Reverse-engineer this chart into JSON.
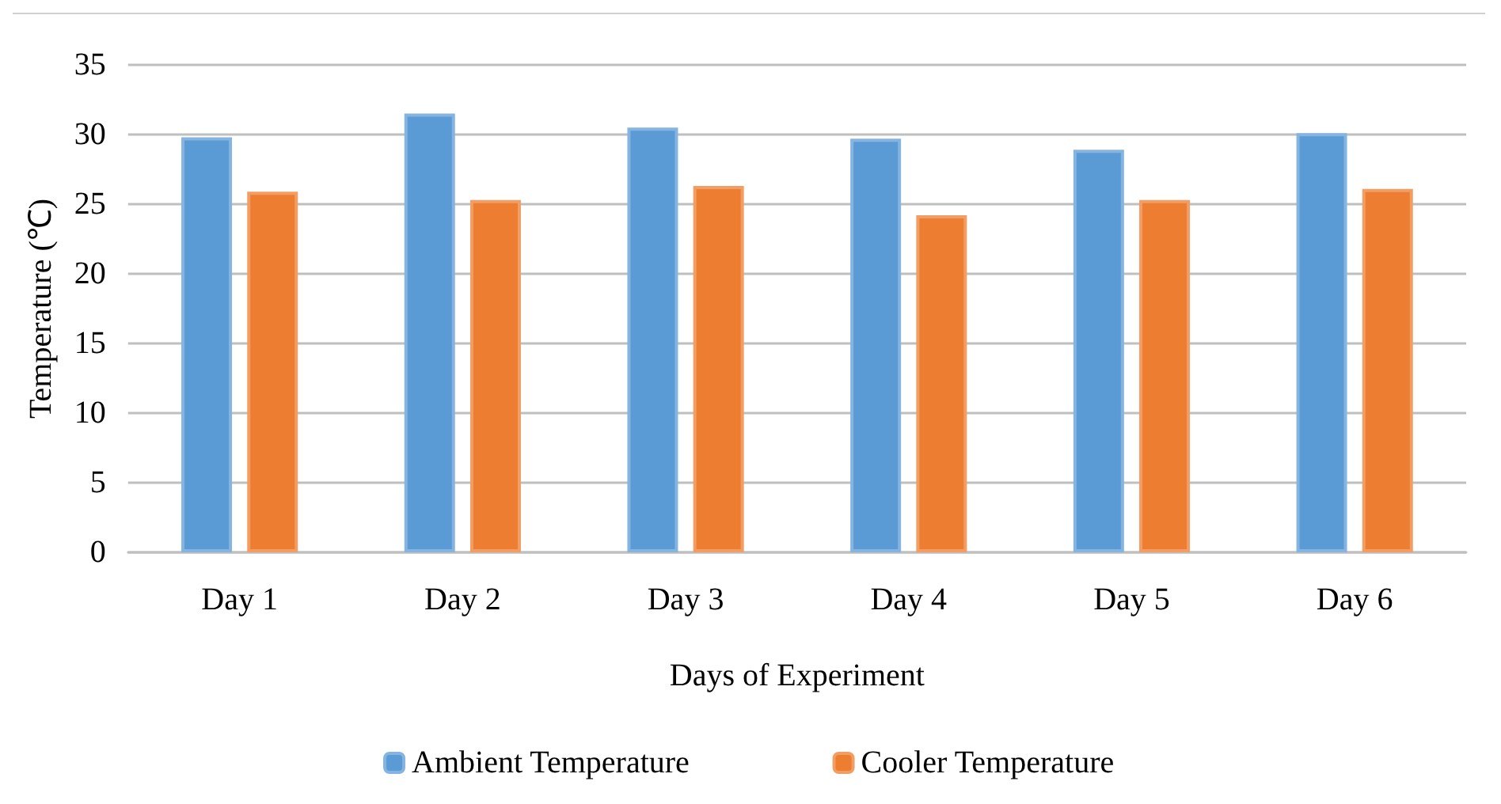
{
  "chart_data": {
    "type": "bar",
    "xlabel": "Days of Experiment",
    "ylabel": "Temperature (℃)",
    "categories": [
      "Day 1",
      "Day 2",
      "Day 3",
      "Day 4",
      "Day 5",
      "Day 6"
    ],
    "series": [
      {
        "name": "Ambient Temperature",
        "color": "#5b9bd5",
        "values": [
          29.8,
          31.5,
          30.5,
          29.7,
          28.9,
          30.1
        ]
      },
      {
        "name": "Cooler Temperature",
        "color": "#ed7d31",
        "values": [
          25.9,
          25.3,
          26.3,
          24.2,
          25.3,
          26.1
        ]
      }
    ],
    "ylim": [
      0,
      35
    ],
    "yticks": [
      0,
      5,
      10,
      15,
      20,
      25,
      30,
      35
    ],
    "grid": "y",
    "legend": "bottom"
  }
}
